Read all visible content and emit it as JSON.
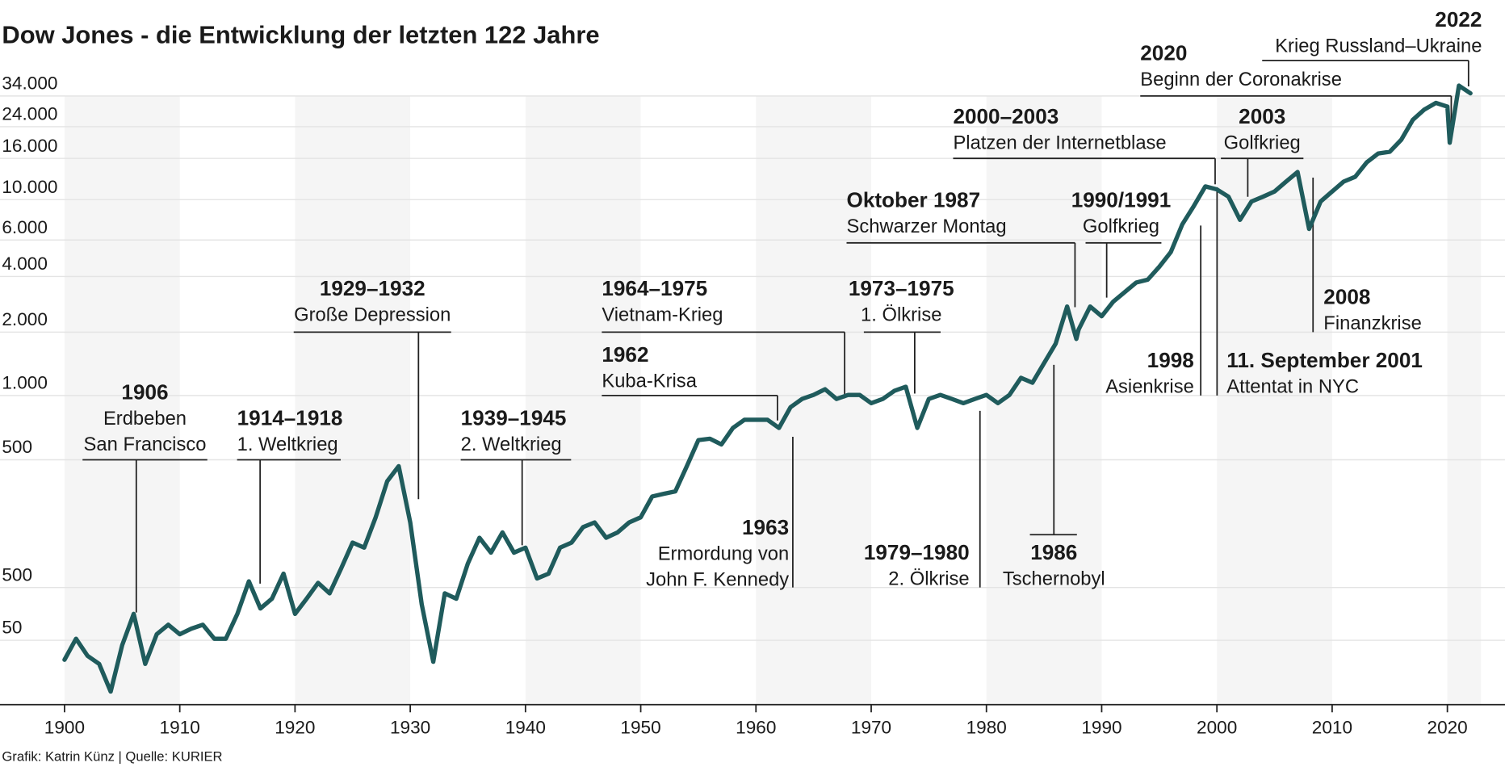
{
  "chart_data": {
    "type": "line",
    "title": "Dow Jones - die Entwicklung der letzten 122 Jahre",
    "source": "Grafik: Katrin Künz | Quelle: KURIER",
    "color": "#1f5b5c",
    "grid": true,
    "x": [
      1900,
      1901,
      1902,
      1903,
      1904,
      1905,
      1906,
      1907,
      1908,
      1909,
      1910,
      1911,
      1912,
      1913,
      1914,
      1915,
      1916,
      1917,
      1918,
      1919,
      1920,
      1921,
      1922,
      1923,
      1924,
      1925,
      1926,
      1927,
      1928,
      1929,
      1930,
      1931,
      1932,
      1933,
      1934,
      1935,
      1936,
      1937,
      1938,
      1939,
      1940,
      1941,
      1942,
      1943,
      1944,
      1945,
      1946,
      1947,
      1948,
      1949,
      1950,
      1951,
      1952,
      1953,
      1954,
      1955,
      1956,
      1957,
      1958,
      1959,
      1960,
      1961,
      1962,
      1963,
      1964,
      1965,
      1966,
      1967,
      1968,
      1969,
      1970,
      1971,
      1972,
      1973,
      1974,
      1975,
      1976,
      1977,
      1978,
      1979,
      1980,
      1981,
      1982,
      1983,
      1984,
      1985,
      1986,
      1987,
      1987.8,
      1988,
      1989,
      1990,
      1991,
      1992,
      1993,
      1994,
      1995,
      1996,
      1997,
      1998,
      1999,
      2000,
      2001,
      2002,
      2003,
      2004,
      2005,
      2006,
      2007,
      2008,
      2009,
      2010,
      2011,
      2012,
      2013,
      2014,
      2015,
      2016,
      2017,
      2018,
      2019,
      2020,
      2020.2,
      2021,
      2022
    ],
    "values": [
      39,
      51,
      41,
      37,
      26,
      47,
      70,
      37,
      54,
      61,
      54,
      58,
      61,
      51,
      51,
      70,
      106,
      75,
      85,
      117,
      70,
      85,
      104,
      91,
      125,
      174,
      163,
      240,
      380,
      461,
      225,
      79,
      38,
      91,
      85,
      133,
      185,
      153,
      198,
      153,
      163,
      110,
      117,
      163,
      174,
      212,
      225,
      185,
      198,
      225,
      240,
      313,
      324,
      334,
      461,
      618,
      628,
      590,
      705,
      770,
      770,
      770,
      705,
      881,
      963,
      1006,
      1071,
      963,
      1006,
      1006,
      921,
      963,
      1052,
      1100,
      705,
      963,
      1006,
      963,
      921,
      963,
      1006,
      921,
      1006,
      1213,
      1150,
      1424,
      1762,
      2752,
      1857,
      2068,
      2752,
      2440,
      2921,
      3291,
      3711,
      3844,
      4453,
      5245,
      7313,
      9226,
      11627,
      11240,
      10350,
      7749,
      9769,
      10350,
      10978,
      12282,
      13697,
      6900,
      9769,
      10978,
      12282,
      12972,
      15284,
      17043,
      17423,
      20298,
      25944,
      29153,
      31441,
      30119,
      19550,
      38249,
      35064
    ],
    "xlim": [
      1894.4,
      2025
    ],
    "xticks": [
      1900,
      1910,
      1920,
      1930,
      1940,
      1950,
      1960,
      1970,
      1980,
      1990,
      2000,
      2010,
      2020
    ],
    "ylim": [
      22,
      34000
    ],
    "yticks": [
      {
        "value": 34000,
        "label": "34.000"
      },
      {
        "value": 24000,
        "label": "24.000"
      },
      {
        "value": 16000,
        "label": "16.000"
      },
      {
        "value": 10000,
        "label": "10.000"
      },
      {
        "value": 6000,
        "label": "6.000"
      },
      {
        "value": 4000,
        "label": "4.000"
      },
      {
        "value": 2000,
        "label": "2.000"
      },
      {
        "value": 1000,
        "label": "1.000"
      },
      500,
      500,
      50
    ],
    "annotations": [
      {
        "title": "1906",
        "lines": [
          "Erdbeben",
          "San Francisco"
        ]
      },
      {
        "title": "1914–1918",
        "lines": [
          "1. Weltkrieg"
        ]
      },
      {
        "title": "1929–1932",
        "lines": [
          "Große Depression"
        ]
      },
      {
        "title": "1939–1945",
        "lines": [
          "2. Weltkrieg"
        ]
      },
      {
        "title": "1964–1975",
        "lines": [
          "Vietnam-Krieg"
        ]
      },
      {
        "title": "1962",
        "lines": [
          "Kuba-Krisa"
        ]
      },
      {
        "title": "1973–1975",
        "lines": [
          "1. Ölkrise"
        ]
      },
      {
        "title": "Oktober 1987",
        "lines": [
          "Schwarzer Montag"
        ]
      },
      {
        "title": "1990/1991",
        "lines": [
          "Golfkrieg"
        ]
      },
      {
        "title": "2000–2003",
        "lines": [
          "Platzen der Internetblase"
        ]
      },
      {
        "title": "2003",
        "lines": [
          "Golfkrieg"
        ]
      },
      {
        "title": "2020",
        "lines": [
          "Beginn der Coronakrise"
        ]
      },
      {
        "title": "2022",
        "lines": [
          "Krieg Russland–Ukraine"
        ]
      },
      {
        "title": "1963",
        "lines": [
          "Ermordung von",
          "John F. Kennedy"
        ]
      },
      {
        "title": "1979–1980",
        "lines": [
          "2. Ölkrise"
        ]
      },
      {
        "title": "1986",
        "lines": [
          "Tschernobyl"
        ]
      },
      {
        "title": "1998",
        "lines": [
          "Asienkrise"
        ]
      },
      {
        "title": "11. September 2001",
        "lines": [
          "Attentat in NYC"
        ]
      },
      {
        "title": "2008",
        "lines": [
          "Finanzkrise"
        ]
      }
    ]
  }
}
